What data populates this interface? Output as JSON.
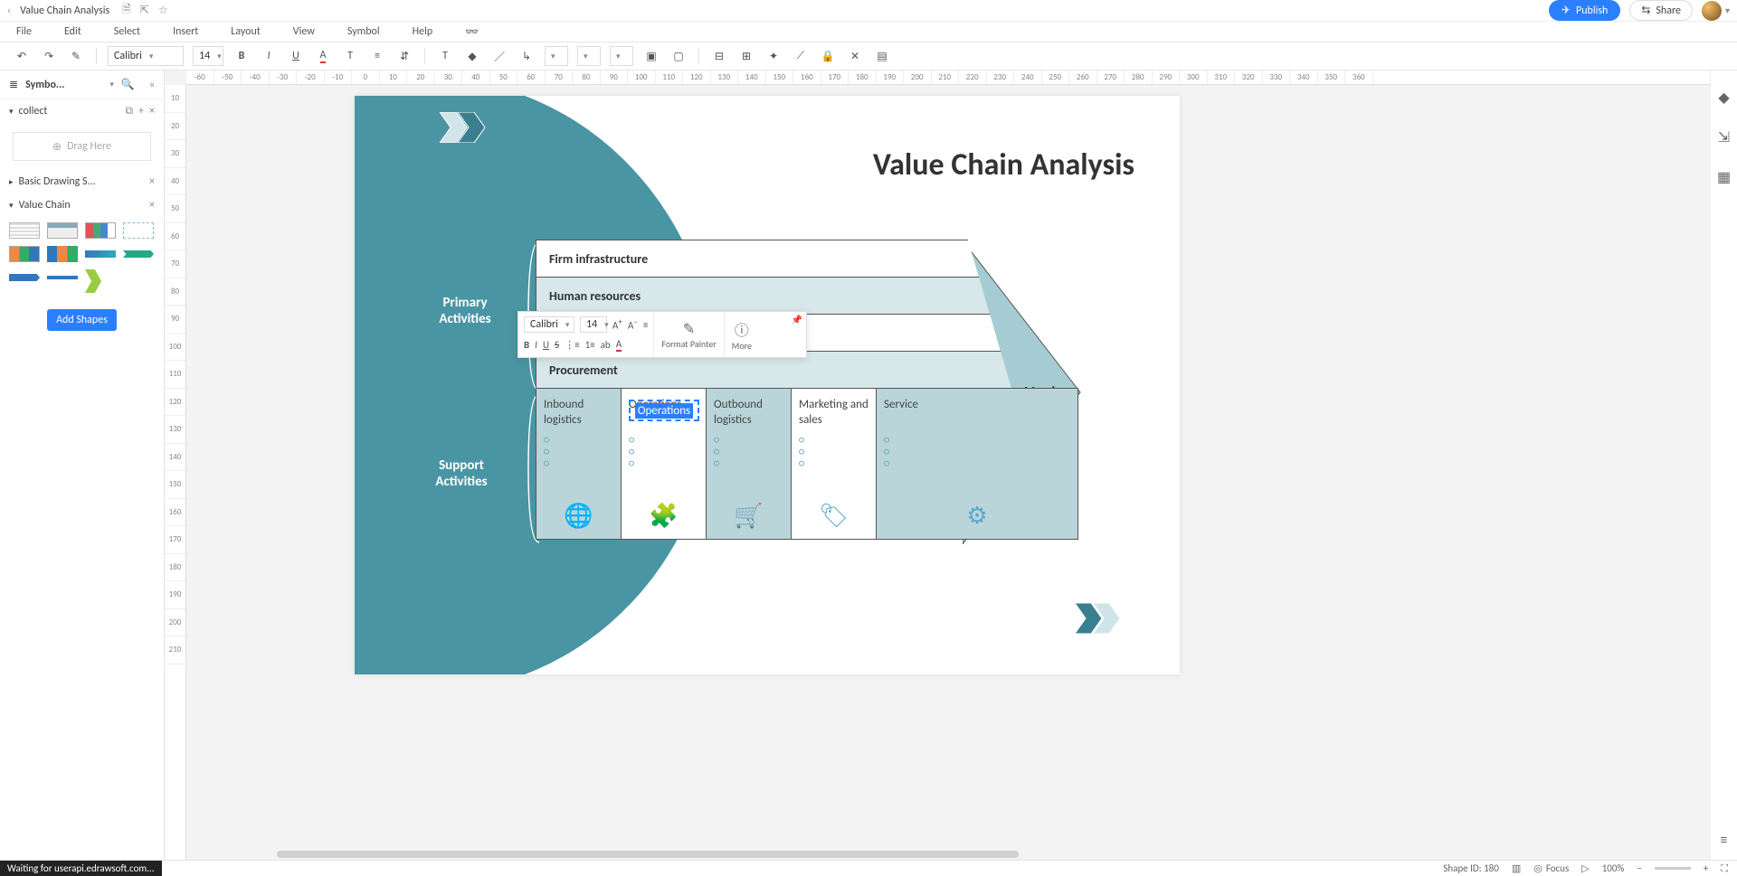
{
  "titlebar": {
    "docName": "Value Chain Analysis",
    "publish": "Publish",
    "share": "Share"
  },
  "menu": [
    "File",
    "Edit",
    "Select",
    "Insert",
    "Layout",
    "View",
    "Symbol",
    "Help"
  ],
  "toolbar": {
    "font": "Calibri",
    "fontSize": "14"
  },
  "sidebar": {
    "title": "Symbo...",
    "collect": "collect",
    "dragHere": "Drag Here",
    "groups": {
      "basic": "Basic Drawing S...",
      "valueChain": "Value Chain"
    },
    "addShapes": "Add Shapes"
  },
  "ruler": {
    "h": [
      "-60",
      "-50",
      "-40",
      "-30",
      "-20",
      "-10",
      "0",
      "10",
      "20",
      "30",
      "40",
      "50",
      "60",
      "70",
      "80",
      "90",
      "100",
      "110",
      "120",
      "130",
      "140",
      "150",
      "160",
      "170",
      "180",
      "190",
      "200",
      "210",
      "220",
      "230",
      "240",
      "250",
      "260",
      "270",
      "280",
      "290",
      "300",
      "310",
      "320",
      "330",
      "340",
      "350",
      "360"
    ],
    "v": [
      "10",
      "20",
      "30",
      "40",
      "50",
      "60",
      "70",
      "80",
      "90",
      "100",
      "110",
      "120",
      "130",
      "140",
      "150",
      "160",
      "170",
      "180",
      "190",
      "200",
      "210"
    ]
  },
  "diagram": {
    "title": "Value Chain Analysis",
    "primaryLabel": "Primary Activities",
    "supportLabel": "Support Activities",
    "support": [
      "Firm infrastructure",
      "Human resources",
      "",
      "Procurement"
    ],
    "supportColors": [
      "#ffffff",
      "#d7e7ea",
      "#ffffff",
      "#d7e7ea"
    ],
    "primary": [
      {
        "name": "Inbound logistics",
        "color": "#b9d5da",
        "icon": "globe"
      },
      {
        "name": "Operations",
        "color": "#ffffff",
        "icon": "puzzle"
      },
      {
        "name": "Outbound logistics",
        "color": "#b9d5da",
        "icon": "cart"
      },
      {
        "name": "Marketing and sales",
        "color": "#ffffff",
        "icon": "tag"
      },
      {
        "name": "Service",
        "color": "#b9d5da",
        "icon": "gears"
      }
    ],
    "margin": "Margin",
    "arrowFill": "#a6ccd3",
    "editingText": "Operations"
  },
  "floatTb": {
    "font": "Calibri",
    "size": "14",
    "formatPainter": "Format Painter",
    "more": "More"
  },
  "status": {
    "loading": "Waiting for userapi.edrawsoft.com...",
    "shapeId": "Shape ID: 180",
    "focus": "Focus",
    "zoom": "100%"
  }
}
